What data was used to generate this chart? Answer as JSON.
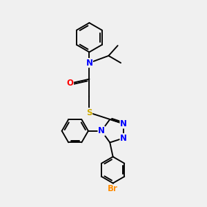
{
  "background_color": "#f0f0f0",
  "atom_colors": {
    "N": "#0000FF",
    "O": "#FF0000",
    "S": "#CCAA00",
    "Br": "#FF8C00",
    "C": "#000000"
  },
  "line_color": "#000000",
  "line_width": 1.4,
  "font_size": 8.5,
  "figsize": [
    3.0,
    3.0
  ],
  "dpi": 100
}
